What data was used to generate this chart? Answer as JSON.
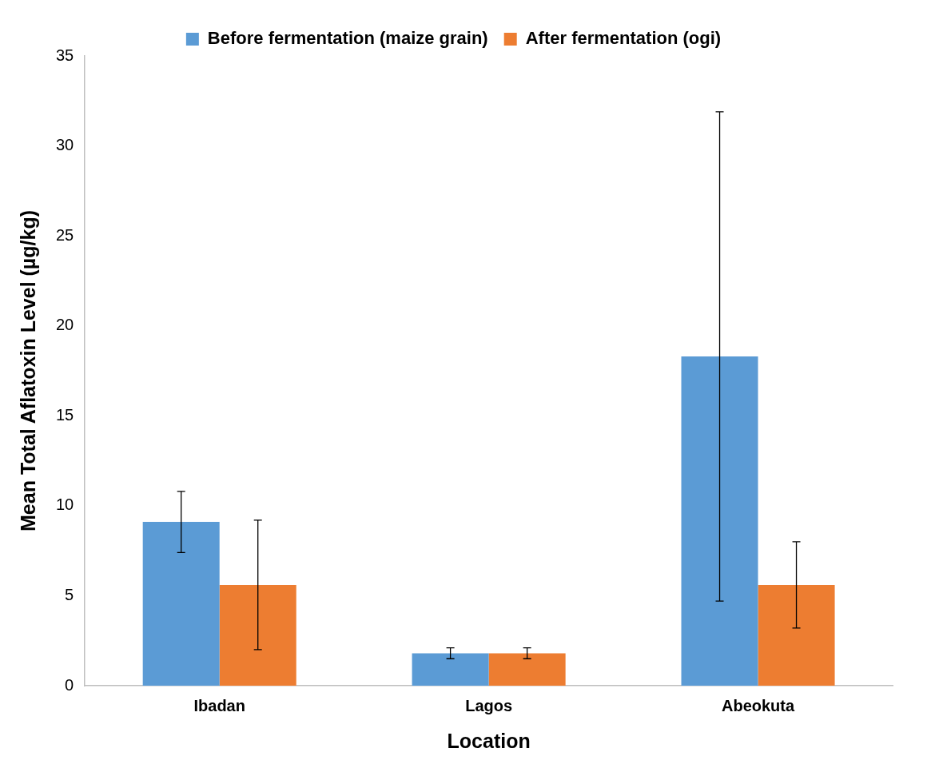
{
  "chart_data": {
    "type": "bar",
    "xlabel": "Location",
    "ylabel": "Mean Total Aflatoxin Level (µg/kg)",
    "categories": [
      "Ibadan",
      "Lagos",
      "Abeokuta"
    ],
    "series": [
      {
        "name": "Before fermentation (maize grain)",
        "color": "#5b9bd5",
        "values": [
          9.1,
          1.8,
          18.3
        ],
        "errors": [
          1.7,
          0.3,
          13.6
        ]
      },
      {
        "name": "After fermentation (ogi)",
        "color": "#ed7d31",
        "values": [
          5.6,
          1.8,
          5.6
        ],
        "errors": [
          3.6,
          0.3,
          2.4
        ]
      }
    ],
    "ylim": [
      0,
      35
    ],
    "yticks": [
      0,
      5,
      10,
      15,
      20,
      25,
      30,
      35
    ],
    "grid": false,
    "legend": "top"
  }
}
